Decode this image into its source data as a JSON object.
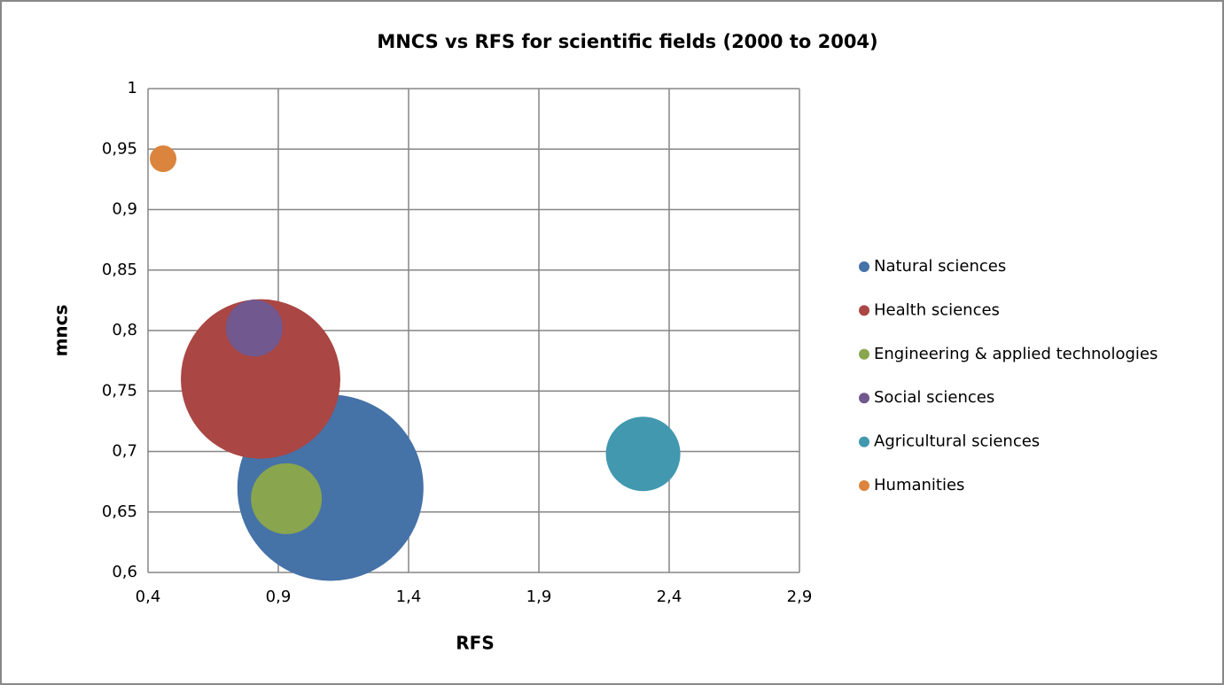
{
  "chart_data": {
    "type": "bubble",
    "title": "MNCS vs RFS for scientific fields (2000 to 2004)",
    "x_label": "RFS",
    "y_label": "mncs",
    "xlim": [
      0.4,
      2.9
    ],
    "ylim": [
      0.6,
      1
    ],
    "xticks": [
      {
        "value": 0.4,
        "label": "0,4"
      },
      {
        "value": 0.9,
        "label": "0,9"
      },
      {
        "value": 1.4,
        "label": "1,4"
      },
      {
        "value": 1.9,
        "label": "1,9"
      },
      {
        "value": 2.4,
        "label": "2,4"
      },
      {
        "value": 2.9,
        "label": "2,9"
      }
    ],
    "yticks": [
      {
        "value": 0.6,
        "label": "0,6"
      },
      {
        "value": 0.65,
        "label": "0,65"
      },
      {
        "value": 0.7,
        "label": "0,7"
      },
      {
        "value": 0.75,
        "label": "0,75"
      },
      {
        "value": 0.8,
        "label": "0,8"
      },
      {
        "value": 0.85,
        "label": "0,85"
      },
      {
        "value": 0.9,
        "label": "0,9"
      },
      {
        "value": 0.95,
        "label": "0,95"
      },
      1
    ],
    "grid": true,
    "legend": "right",
    "series": [
      {
        "name": "Natural sciences",
        "color": "#4572a7",
        "x": [
          1.1
        ],
        "values": [
          0.67
        ],
        "sizes": [
          11025
        ]
      },
      {
        "name": "Health sciences",
        "color": "#aa4643",
        "x": [
          0.832
        ],
        "values": [
          0.76
        ],
        "sizes": [
          8100
        ]
      },
      {
        "name": "Engineering & applied technologies",
        "color": "#89a54e",
        "x": [
          0.931
        ],
        "values": [
          0.661
        ],
        "sizes": [
          1600
        ]
      },
      {
        "name": "Social sciences",
        "color": "#71588f",
        "x": [
          0.808
        ],
        "values": [
          0.802
        ],
        "sizes": [
          1024
        ]
      },
      {
        "name": "Agricultural sciences",
        "color": "#4198af",
        "x": [
          2.3
        ],
        "values": [
          0.698
        ],
        "sizes": [
          1764
        ]
      },
      {
        "name": "Humanities",
        "color": "#db843d",
        "x": [
          0.458
        ],
        "values": [
          0.942
        ],
        "sizes": [
          225
        ]
      }
    ]
  }
}
